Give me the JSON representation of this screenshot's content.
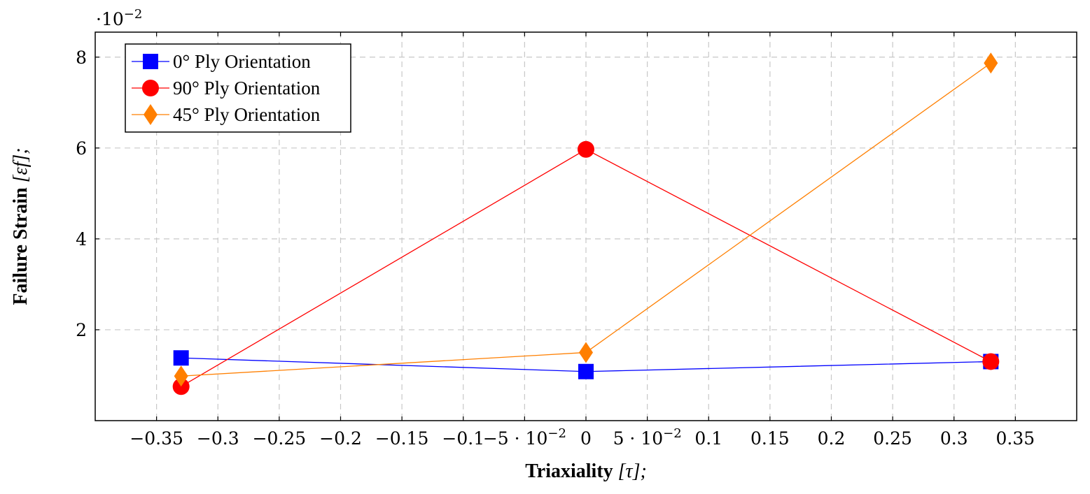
{
  "chart_data": {
    "type": "line",
    "xlabel_bold": "Triaxiality",
    "xlabel_unit": "[τ];",
    "ylabel_bold": "Failure Strain",
    "ylabel_unit": "[εf];",
    "y_scale_base": "·10",
    "y_scale_exp": "−2",
    "xlim": [
      -0.4,
      0.4
    ],
    "ylim": [
      0.0,
      0.0855
    ],
    "grid": true,
    "legend_position": "top-left",
    "x_ticks": [
      {
        "value": -0.35,
        "label": "−0.35"
      },
      {
        "value": -0.3,
        "label": "−0.3"
      },
      {
        "value": -0.25,
        "label": "−0.25"
      },
      {
        "value": -0.2,
        "label": "−0.2"
      },
      {
        "value": -0.15,
        "label": "−0.15"
      },
      {
        "value": -0.1,
        "label": "−0.1"
      },
      {
        "value": -0.05,
        "label": "−5 · 10",
        "exp": "−2"
      },
      {
        "value": 0,
        "label": "0"
      },
      {
        "value": 0.05,
        "label": "5 · 10",
        "exp": "−2"
      },
      {
        "value": 0.1,
        "label": "0.1"
      },
      {
        "value": 0.15,
        "label": "0.15"
      },
      {
        "value": 0.2,
        "label": "0.2"
      },
      {
        "value": 0.25,
        "label": "0.25"
      },
      {
        "value": 0.3,
        "label": "0.3"
      },
      {
        "value": 0.35,
        "label": "0.35"
      }
    ],
    "y_ticks": [
      {
        "value": 0.02,
        "label": "2"
      },
      {
        "value": 0.04,
        "label": "4"
      },
      {
        "value": 0.06,
        "label": "6"
      },
      {
        "value": 0.08,
        "label": "8"
      }
    ],
    "series": [
      {
        "name": "0° Ply Orientation",
        "color": "#0000ff",
        "marker": "square",
        "x": [
          -0.33,
          0,
          0.33
        ],
        "y": [
          0.0138,
          0.0108,
          0.013
        ]
      },
      {
        "name": "90° Ply Orientation",
        "color": "#ff0000",
        "marker": "circle",
        "x": [
          -0.33,
          0,
          0.33
        ],
        "y": [
          0.0075,
          0.0597,
          0.013
        ]
      },
      {
        "name": "45° Ply Orientation",
        "color": "#ff7f00",
        "marker": "diamond",
        "x": [
          -0.33,
          0,
          0.33
        ],
        "y": [
          0.0098,
          0.015,
          0.0787
        ]
      }
    ]
  }
}
